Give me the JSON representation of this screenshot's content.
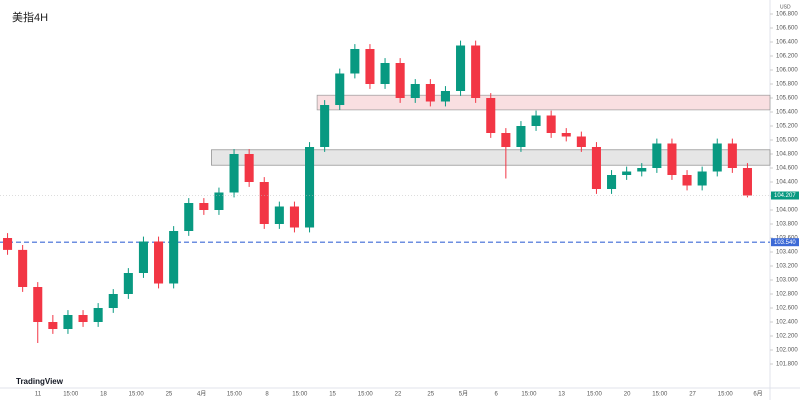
{
  "chart_data": {
    "type": "candlestick",
    "title": "美指4H",
    "axis_unit": "USD",
    "logo": "TradingView",
    "up_color": "#089981",
    "down_color": "#f23645",
    "ylim": [
      101.5,
      107.0
    ],
    "yticks": [
      {
        "value": 101.8,
        "label": "101.800"
      },
      {
        "value": 102.0,
        "label": "102.000"
      },
      {
        "value": 102.2,
        "label": "102.200"
      },
      {
        "value": 102.4,
        "label": "102.400"
      },
      {
        "value": 102.6,
        "label": "102.600"
      },
      {
        "value": 102.8,
        "label": "102.800"
      },
      {
        "value": 103.0,
        "label": "103.000"
      },
      {
        "value": 103.2,
        "label": "103.200"
      },
      {
        "value": 103.4,
        "label": "103.400"
      },
      {
        "value": 103.6,
        "label": "103.600"
      },
      {
        "value": 103.8,
        "label": "103.800"
      },
      {
        "value": 104.0,
        "label": "104.000"
      },
      {
        "value": 104.2,
        "label": "104.200"
      },
      {
        "value": 104.4,
        "label": "104.400"
      },
      {
        "value": 104.6,
        "label": "104.600"
      },
      {
        "value": 104.8,
        "label": "104.800"
      },
      {
        "value": 105.0,
        "label": "105.000"
      },
      {
        "value": 105.2,
        "label": "105.200"
      },
      {
        "value": 105.4,
        "label": "105.400"
      },
      {
        "value": 105.6,
        "label": "105.600"
      },
      {
        "value": 105.8,
        "label": "105.800"
      },
      {
        "value": 106.0,
        "label": "106.000"
      },
      {
        "value": 106.2,
        "label": "106.200"
      },
      {
        "value": 106.4,
        "label": "106.400"
      },
      {
        "value": 106.6,
        "label": "106.600"
      },
      {
        "value": 106.8,
        "label": "106.800"
      }
    ],
    "time_labels": [
      "11",
      "15:00",
      "18",
      "15:00",
      "25",
      "4月",
      "15:00",
      "8",
      "15:00",
      "15",
      "15:00",
      "22",
      "25",
      "5月",
      "6",
      "15:00",
      "13",
      "15:00",
      "20",
      "15:00",
      "27",
      "15:00",
      "6月"
    ],
    "open": [
      103.6,
      103.43,
      102.9,
      102.4,
      102.3,
      102.5,
      102.4,
      102.6,
      102.8,
      103.1,
      103.55,
      102.95,
      103.7,
      104.1,
      104.0,
      104.25,
      104.8,
      104.4,
      103.8,
      104.05,
      103.75,
      104.9,
      105.5,
      105.95,
      106.3,
      105.8,
      106.1,
      105.6,
      105.8,
      105.55,
      105.7,
      106.35,
      105.6,
      105.1,
      104.9,
      105.2,
      105.35,
      105.1,
      105.05,
      104.9,
      104.3,
      104.5,
      104.55,
      104.6,
      104.95,
      104.5,
      104.35,
      104.55,
      104.95,
      104.6
    ],
    "high": [
      103.67,
      103.5,
      102.97,
      102.5,
      102.57,
      102.57,
      102.67,
      102.87,
      103.17,
      103.62,
      103.62,
      103.77,
      104.17,
      104.17,
      104.32,
      104.87,
      104.87,
      104.47,
      104.12,
      104.12,
      104.97,
      105.57,
      106.02,
      106.37,
      106.37,
      106.17,
      106.17,
      105.87,
      105.87,
      105.77,
      106.42,
      106.42,
      105.67,
      105.17,
      105.27,
      105.42,
      105.42,
      105.17,
      105.12,
      104.97,
      104.57,
      104.62,
      104.67,
      105.02,
      105.02,
      104.57,
      104.62,
      105.02,
      105.02,
      104.67
    ],
    "low": [
      103.36,
      102.83,
      102.1,
      102.23,
      102.23,
      102.33,
      102.33,
      102.53,
      102.73,
      103.03,
      102.88,
      102.88,
      103.63,
      103.93,
      103.93,
      104.18,
      104.33,
      103.73,
      103.73,
      103.68,
      103.68,
      104.83,
      105.43,
      105.88,
      105.73,
      105.73,
      105.53,
      105.53,
      105.48,
      105.48,
      105.63,
      105.53,
      105.03,
      104.45,
      104.83,
      105.13,
      105.03,
      104.98,
      104.83,
      104.23,
      104.23,
      104.43,
      104.48,
      104.53,
      104.43,
      104.28,
      104.28,
      104.48,
      104.53,
      104.18
    ],
    "close": [
      103.43,
      102.9,
      102.4,
      102.3,
      102.5,
      102.4,
      102.6,
      102.8,
      103.1,
      103.55,
      102.95,
      103.7,
      104.1,
      104.0,
      104.25,
      104.8,
      104.4,
      103.8,
      104.05,
      103.75,
      104.9,
      105.5,
      105.95,
      106.3,
      105.8,
      106.1,
      105.6,
      105.8,
      105.55,
      105.7,
      106.35,
      105.6,
      105.1,
      104.9,
      105.2,
      105.35,
      105.1,
      105.05,
      104.9,
      104.3,
      104.5,
      104.55,
      104.6,
      104.95,
      104.5,
      104.35,
      104.55,
      104.95,
      104.6,
      104.207
    ],
    "zones": [
      {
        "top": 105.64,
        "bottom": 105.43,
        "color": "#f8d7da",
        "border": "#999999",
        "start": 21
      },
      {
        "top": 104.86,
        "bottom": 104.64,
        "color": "#e0e0e0",
        "border": "#888888",
        "start": 14
      }
    ],
    "price_line": {
      "value": 103.54,
      "label": "103.540",
      "color": "#3d6ad6"
    },
    "last_price": {
      "value": 104.207,
      "label": "104.207"
    }
  }
}
